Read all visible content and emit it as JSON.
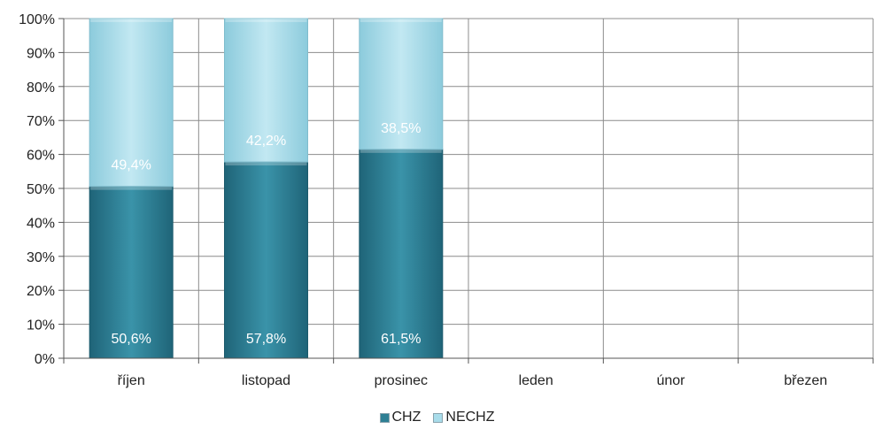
{
  "chart_data": {
    "type": "bar",
    "stacked": true,
    "percent_stacked": true,
    "categories": [
      "říjen",
      "listopad",
      "prosinec",
      "leden",
      "únor",
      "březen"
    ],
    "series": [
      {
        "name": "CHZ",
        "values": [
          50.6,
          57.8,
          61.5,
          null,
          null,
          null
        ],
        "labels": [
          "50,6%",
          "57,8%",
          "61,5%"
        ],
        "color": "#2e7f94"
      },
      {
        "name": "NECHZ",
        "values": [
          49.4,
          42.2,
          38.5,
          null,
          null,
          null
        ],
        "labels": [
          "49,4%",
          "42,2%",
          "38,5%"
        ],
        "color": "#a8dcea"
      }
    ],
    "y_ticks": [
      "0%",
      "10%",
      "20%",
      "30%",
      "40%",
      "50%",
      "60%",
      "70%",
      "80%",
      "90%",
      "100%"
    ],
    "ylim": [
      0,
      100
    ],
    "grid": true,
    "legend_position": "bottom"
  }
}
